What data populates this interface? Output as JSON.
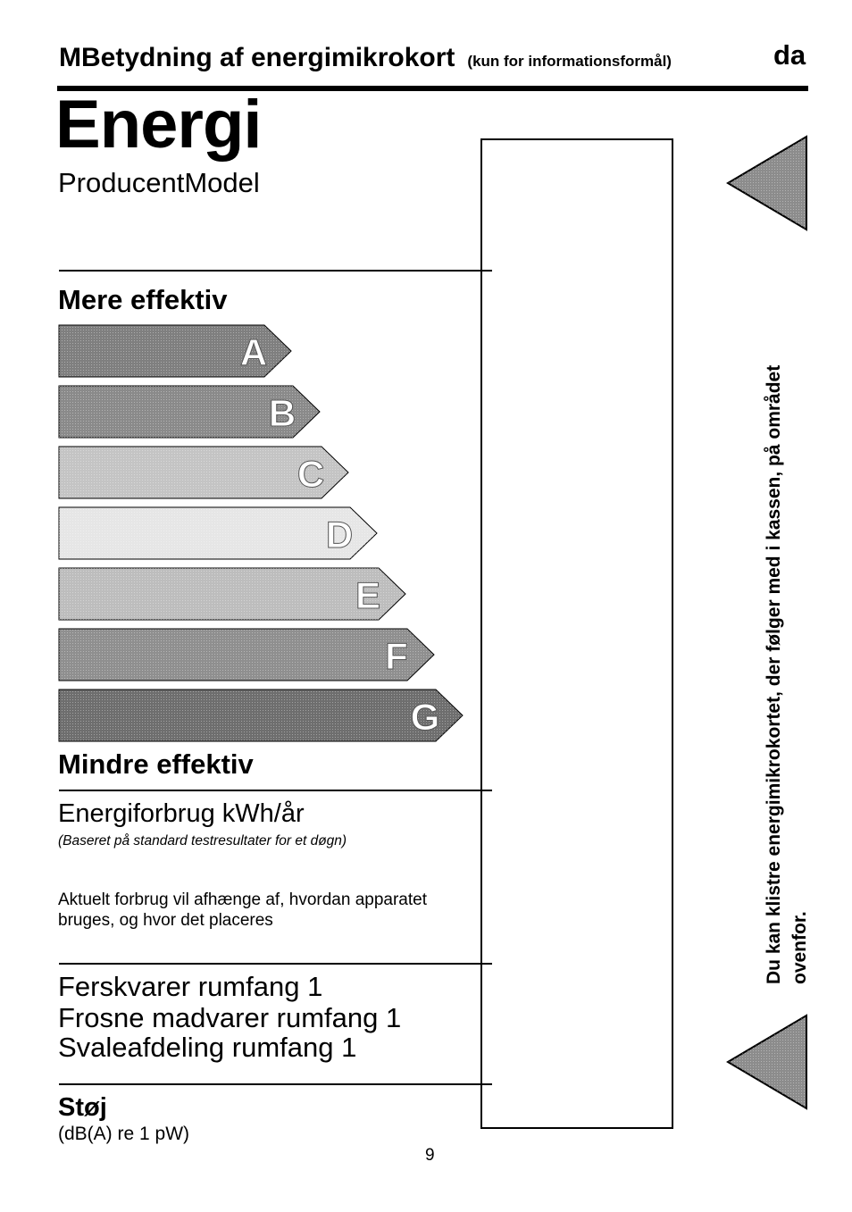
{
  "header": {
    "title": "MBetydning af energimikrokort",
    "note": "(kun for informationsformål)",
    "lang": "da"
  },
  "label": {
    "title": "Energi",
    "producer_model": "ProducentModel",
    "more_efficient": "Mere effektiv",
    "less_efficient": "Mindre effektiv",
    "classes": [
      {
        "letter": "A",
        "color": "#7f7f7f"
      },
      {
        "letter": "B",
        "color": "#8a8a8a"
      },
      {
        "letter": "C",
        "color": "#c4c4c4"
      },
      {
        "letter": "D",
        "color": "#e6e6e6"
      },
      {
        "letter": "E",
        "color": "#bdbdbd"
      },
      {
        "letter": "F",
        "color": "#8f8f8f"
      },
      {
        "letter": "G",
        "color": "#6e6e6e"
      }
    ]
  },
  "consumption": {
    "title": "Energiforbrug kWh/år",
    "note": "(Baseret på standard testresultater for et døgn)",
    "text": "Aktuelt forbrug vil afhænge af, hvordan apparatet bruges, og hvor det placeres"
  },
  "volumes": {
    "fresh": "Ferskvarer rumfang 1",
    "frozen": "Frosne madvarer rumfang 1",
    "chill": "Svaleafdeling rumfang 1"
  },
  "noise": {
    "title": "Støj",
    "unit": "(dB(A) re 1 pW)"
  },
  "sidebar": {
    "line1": "Du kan klistre energimikrokortet, der følger med i kassen, på området",
    "line2": "ovenfor."
  },
  "page_number": "9"
}
